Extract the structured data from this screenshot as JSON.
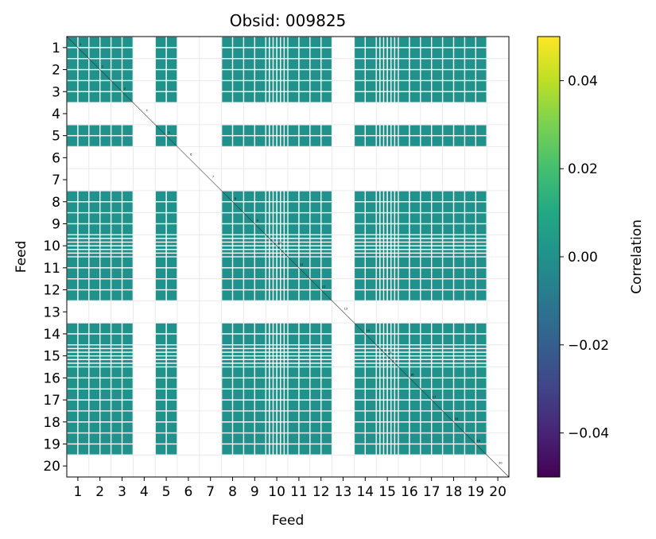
{
  "chart_data": {
    "type": "heatmap",
    "title": "Obsid: 009825",
    "xlabel": "Feed",
    "ylabel": "Feed",
    "x_ticks": [
      "1",
      "2",
      "3",
      "4",
      "5",
      "6",
      "7",
      "8",
      "9",
      "10",
      "11",
      "12",
      "13",
      "14",
      "15",
      "16",
      "17",
      "18",
      "19",
      "20"
    ],
    "y_ticks": [
      "1",
      "2",
      "3",
      "4",
      "5",
      "6",
      "7",
      "8",
      "9",
      "10",
      "11",
      "12",
      "13",
      "14",
      "15",
      "16",
      "17",
      "18",
      "19",
      "20"
    ],
    "feeds": [
      1,
      2,
      3,
      4,
      5,
      6,
      7,
      8,
      9,
      10,
      11,
      12,
      13,
      14,
      15,
      16,
      17,
      18,
      19,
      20
    ],
    "active_feeds": [
      1,
      2,
      3,
      5,
      8,
      9,
      10,
      11,
      12,
      14,
      15,
      16,
      17,
      18,
      19
    ],
    "inactive_feeds": [
      4,
      6,
      7,
      13,
      20
    ],
    "cell_value": 0.0,
    "colormap": "viridis",
    "colorbar": {
      "label": "Correlation",
      "vmin": -0.05,
      "vmax": 0.05,
      "ticks": [
        {
          "value": 0.04,
          "label": "0.04"
        },
        {
          "value": 0.02,
          "label": "0.02"
        },
        {
          "value": 0.0,
          "label": "0.00"
        },
        {
          "value": -0.02,
          "label": "−0.02"
        },
        {
          "value": -0.04,
          "label": "−0.04"
        }
      ]
    },
    "diagonal_labels": [
      "1",
      "2",
      "3",
      "4",
      "5",
      "6",
      "7",
      "8",
      "9",
      "10",
      "11",
      "12",
      "13",
      "14",
      "15",
      "16",
      "17",
      "18",
      "19",
      "20"
    ],
    "grid": true
  }
}
